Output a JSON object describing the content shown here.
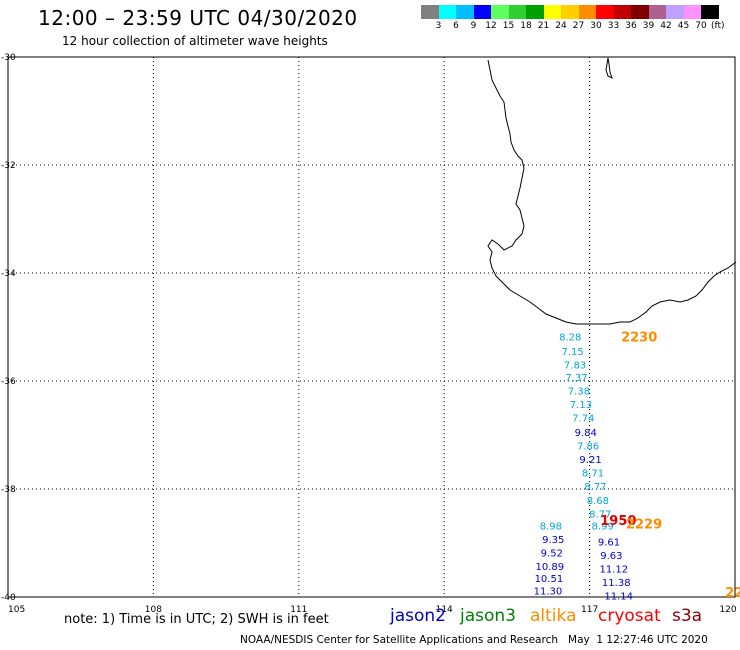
{
  "header": {
    "title": "12:00 – 23:59 UTC 04/30/2020",
    "subtitle": "12 hour collection of altimeter wave heights"
  },
  "colorbar": {
    "colors": [
      "#808080",
      "#00ffff",
      "#00bfff",
      "#0000ff",
      "#60ff60",
      "#30d030",
      "#00a000",
      "#ffff00",
      "#ffd000",
      "#ff8c00",
      "#ff0000",
      "#c00000",
      "#800000",
      "#b06090",
      "#c0a0ff",
      "#ff90ff",
      "#000000"
    ],
    "labels": [
      "3",
      "6",
      "9",
      "12",
      "15",
      "18",
      "21",
      "24",
      "27",
      "30",
      "33",
      "36",
      "39",
      "42",
      "45",
      "70"
    ],
    "unit": "(ft)"
  },
  "map": {
    "lat_ticks": [
      "-30",
      "-32",
      "-34",
      "-36",
      "-38",
      "-40"
    ],
    "lon_ticks": [
      "105",
      "108",
      "111",
      "114",
      "117",
      "120"
    ]
  },
  "legend": {
    "note": "note: 1) Time is in UTC; 2) SWH is in feet",
    "satellites": [
      {
        "name": "jason2",
        "color": "#0000cd"
      },
      {
        "name": "jason3",
        "color": "#008000"
      },
      {
        "name": "altika",
        "color": "#ff8c00"
      },
      {
        "name": "cryosat",
        "color": "#ff0000"
      },
      {
        "name": "s3a",
        "color": "#8b0000"
      }
    ]
  },
  "footer": {
    "credit": "NOAA/NESDIS Center for Satellite Applications and Research",
    "timestamp": "May  1 12:27:46 UTC 2020"
  },
  "observations": [
    {
      "lon": 116.6,
      "lat": -35.25,
      "swh": "8.28",
      "color": "#00a8d8"
    },
    {
      "lon": 116.65,
      "lat": -35.52,
      "swh": "7.15",
      "color": "#00a8d8"
    },
    {
      "lon": 116.7,
      "lat": -35.77,
      "swh": "7.83",
      "color": "#00a8d8"
    },
    {
      "lon": 116.73,
      "lat": -36.0,
      "swh": "7.37",
      "color": "#00a8d8"
    },
    {
      "lon": 116.78,
      "lat": -36.25,
      "swh": "7.38",
      "color": "#00a8d8"
    },
    {
      "lon": 116.82,
      "lat": -36.5,
      "swh": "7.13",
      "color": "#00a8d8"
    },
    {
      "lon": 116.87,
      "lat": -36.75,
      "swh": "7.74",
      "color": "#00a8d8"
    },
    {
      "lon": 116.92,
      "lat": -37.02,
      "swh": "9.84",
      "color": "#0000cd"
    },
    {
      "lon": 116.97,
      "lat": -37.27,
      "swh": "7.86",
      "color": "#00a8d8"
    },
    {
      "lon": 117.02,
      "lat": -37.52,
      "swh": "9.21",
      "color": "#0000cd"
    },
    {
      "lon": 117.07,
      "lat": -37.77,
      "swh": "8.71",
      "color": "#00a8d8"
    },
    {
      "lon": 117.12,
      "lat": -38.02,
      "swh": "8.77",
      "color": "#00a8d8"
    },
    {
      "lon": 117.17,
      "lat": -38.28,
      "swh": "8.68",
      "color": "#00a8d8"
    },
    {
      "lon": 117.22,
      "lat": -38.53,
      "swh": "8.77",
      "color": "#00a8d8"
    },
    {
      "lon": 117.27,
      "lat": -38.75,
      "swh": "8.99",
      "color": "#00a8d8"
    },
    {
      "lon": 116.2,
      "lat": -38.75,
      "swh": "8.98",
      "color": "#00a8d8"
    },
    {
      "lon": 116.25,
      "lat": -39.0,
      "swh": "9.35",
      "color": "#0000cd"
    },
    {
      "lon": 116.22,
      "lat": -39.25,
      "swh": "9.52",
      "color": "#0000cd"
    },
    {
      "lon": 116.18,
      "lat": -39.5,
      "swh": "10.89",
      "color": "#0000cd"
    },
    {
      "lon": 116.16,
      "lat": -39.72,
      "swh": "10.51",
      "color": "#0000cd"
    },
    {
      "lon": 116.14,
      "lat": -39.95,
      "swh": "11.30",
      "color": "#0000cd"
    },
    {
      "lon": 117.4,
      "lat": -39.05,
      "swh": "9.61",
      "color": "#0000cd"
    },
    {
      "lon": 117.45,
      "lat": -39.3,
      "swh": "9.63",
      "color": "#0000cd"
    },
    {
      "lon": 117.5,
      "lat": -39.55,
      "swh": "11.12",
      "color": "#0000cd"
    },
    {
      "lon": 117.55,
      "lat": -39.8,
      "swh": "11.38",
      "color": "#0000cd"
    },
    {
      "lon": 117.6,
      "lat": -40.05,
      "swh": "11.14",
      "color": "#0000cd"
    }
  ],
  "pass_times": [
    {
      "lon": 117.65,
      "lat": -35.27,
      "time": "2230",
      "color": "#ff8c00"
    },
    {
      "lon": 117.22,
      "lat": -38.67,
      "time": "1950",
      "color": "#e00000"
    },
    {
      "lon": 117.75,
      "lat": -38.73,
      "time": "2229",
      "color": "#ff8c00"
    },
    {
      "lon": 119.8,
      "lat": -40.0,
      "time": "22",
      "color": "#ff8c00"
    }
  ]
}
